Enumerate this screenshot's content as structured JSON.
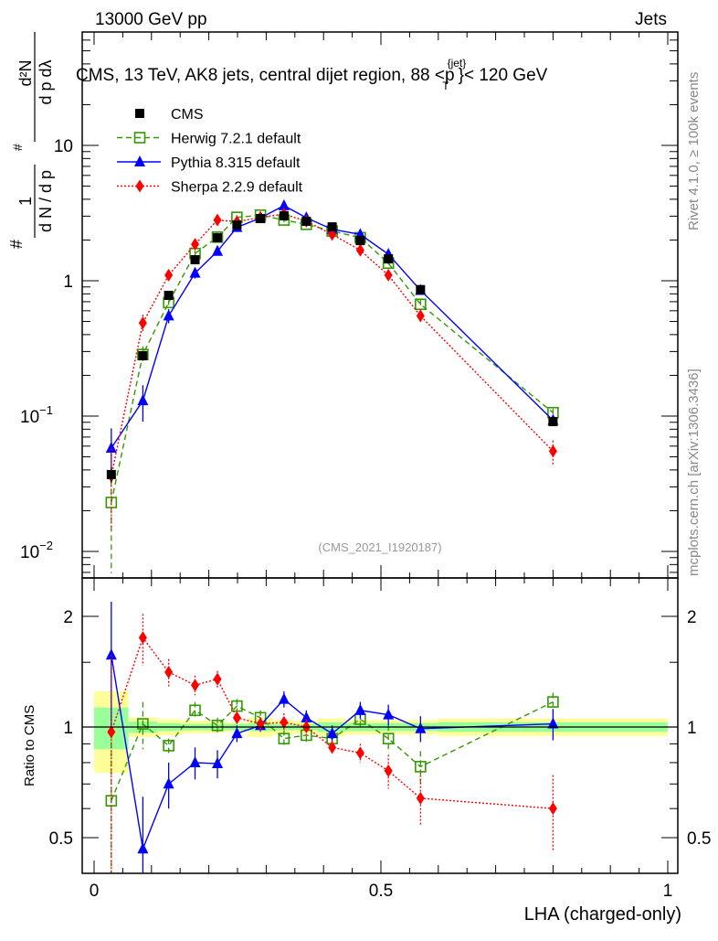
{
  "header": {
    "left": "13000 GeV pp",
    "right": "Jets"
  },
  "side": {
    "top": "Rivet 4.1.0, ≥ 100k events",
    "bottom": "mcplots.cern.ch [arXiv:1306.3436]"
  },
  "analysis_id": "(CMS_2021_I1920187)",
  "chart_data": [
    {
      "type": "line",
      "title": "CMS, 13 TeV, AK8 jets, central dijet region, 88 <p_T^{jet}< 120 GeV",
      "title_main": "CMS, 13 TeV, AK8 jets, central dijet region, 88 <p",
      "title_sup": "{jet}",
      "title_sub": "T",
      "title_end": "}< 120 GeV",
      "ylabel": "1/(dN/dp_T) d²N/(dp_T dλ)",
      "ylabel_parts": {
        "num1": "1",
        "den1": "d N / d p",
        "num2": "d²N",
        "den2": "d p  dλ",
        "hash": "#"
      },
      "xlabel": "",
      "yscale": "log",
      "xlim": [
        -0.02,
        1.02
      ],
      "ylim": [
        0.0065,
        69
      ],
      "yticks": [
        {
          "v": 0.01,
          "base": "10",
          "exp": "−2"
        },
        {
          "v": 0.1,
          "base": "10",
          "exp": "−1"
        },
        {
          "v": 1,
          "base": "1",
          "exp": ""
        },
        {
          "v": 10,
          "base": "10",
          "exp": ""
        }
      ],
      "x": [
        0.03,
        0.085,
        0.13,
        0.176,
        0.215,
        0.249,
        0.29,
        0.331,
        0.37,
        0.415,
        0.464,
        0.513,
        0.569,
        0.8
      ],
      "legend_position": "top-left",
      "series": [
        {
          "name": "CMS",
          "color": "#000000",
          "marker": "square",
          "style": "none",
          "values": [
            0.037,
            0.279,
            0.78,
            1.43,
            2.08,
            2.58,
            2.88,
            3.02,
            2.75,
            2.5,
            1.98,
            1.45,
            0.86,
            0.091
          ],
          "rel_err": [
            0.13,
            0.03,
            0.025,
            0.02,
            0.02,
            0.02,
            0.02,
            0.02,
            0.02,
            0.03,
            0.025,
            0.025,
            0.025,
            0.03
          ]
        },
        {
          "name": "Herwig 7.2.1 default",
          "color": "#339900",
          "marker": "open-square",
          "style": "dashed",
          "values": [
            0.023,
            0.285,
            0.69,
            1.59,
            2.1,
            2.94,
            3.05,
            2.81,
            2.61,
            2.33,
            2.08,
            1.35,
            0.67,
            0.106
          ],
          "rel_err": [
            0.7,
            0.15,
            0.04,
            0.05,
            0.05,
            0.04,
            0.04,
            0.04,
            0.04,
            0.03,
            0.04,
            0.07,
            0.08,
            0.07
          ]
        },
        {
          "name": "Pythia 8.315 default",
          "color": "#0000ff",
          "marker": "triangle",
          "style": "solid",
          "values": [
            0.058,
            0.13,
            0.55,
            1.14,
            1.65,
            2.48,
            2.91,
            3.59,
            2.92,
            2.4,
            2.2,
            1.57,
            0.85,
            0.093
          ],
          "rel_err": [
            0.4,
            0.3,
            0.12,
            0.09,
            0.07,
            0.05,
            0.04,
            0.05,
            0.05,
            0.05,
            0.05,
            0.06,
            0.07,
            0.09
          ]
        },
        {
          "name": "Sherpa 2.2.9 default",
          "color": "#ff0000",
          "marker": "diamond",
          "style": "dotted",
          "values": [
            0.036,
            0.488,
            1.1,
            1.86,
            2.81,
            2.73,
            2.94,
            3.11,
            2.75,
            2.2,
            1.68,
            1.1,
            0.55,
            0.055
          ],
          "rel_err": [
            0.6,
            0.15,
            0.08,
            0.06,
            0.05,
            0.04,
            0.04,
            0.06,
            0.05,
            0.04,
            0.06,
            0.09,
            0.12,
            0.2
          ]
        }
      ]
    },
    {
      "type": "line",
      "title": "",
      "ylabel": "Ratio to CMS",
      "xlabel": "LHA (charged-only)",
      "yscale": "log",
      "ylim": [
        0.4,
        2.54
      ],
      "yticks": [
        0.5,
        1,
        2
      ],
      "xticks": [
        {
          "v": 0,
          "label": "0"
        },
        {
          "v": 0.5,
          "label": "0.5"
        },
        {
          "v": 1,
          "label": "1"
        }
      ],
      "bin_edges": [
        0.0,
        0.06,
        0.11,
        0.152,
        0.2,
        0.23,
        0.268,
        0.312,
        0.35,
        0.39,
        0.44,
        0.488,
        0.538,
        0.6,
        1.0
      ],
      "band_total": [
        0.25,
        0.06,
        0.05,
        0.04,
        0.035,
        0.03,
        0.06,
        0.045,
        0.04,
        0.055,
        0.045,
        0.045,
        0.045,
        0.055
      ],
      "band_stat": [
        0.13,
        0.035,
        0.025,
        0.02,
        0.02,
        0.02,
        0.025,
        0.02,
        0.02,
        0.03,
        0.025,
        0.025,
        0.025,
        0.03
      ],
      "band_colors": {
        "total": "#ffff99",
        "stat": "#99ff99"
      },
      "series": [
        {
          "name": "Herwig 7.2.1 default",
          "values": [
            0.63,
            1.02,
            0.89,
            1.11,
            1.01,
            1.14,
            1.06,
            0.93,
            0.95,
            0.93,
            1.05,
            0.93,
            0.78,
            1.17
          ],
          "err": [
            0.45,
            0.15,
            0.04,
            0.06,
            0.05,
            0.05,
            0.05,
            0.05,
            0.05,
            0.04,
            0.05,
            0.08,
            0.08,
            0.07
          ]
        },
        {
          "name": "Pythia 8.315 default",
          "values": [
            1.57,
            0.466,
            0.7,
            0.8,
            0.795,
            0.96,
            1.01,
            1.19,
            1.06,
            0.96,
            1.11,
            1.08,
            0.99,
            1.02
          ],
          "err": [
            0.62,
            0.18,
            0.1,
            0.08,
            0.07,
            0.05,
            0.04,
            0.06,
            0.05,
            0.05,
            0.06,
            0.07,
            0.08,
            0.1
          ]
        },
        {
          "name": "Sherpa 2.2.9 default",
          "values": [
            0.97,
            1.75,
            1.41,
            1.3,
            1.35,
            1.06,
            1.02,
            1.03,
            1.0,
            0.88,
            0.85,
            0.76,
            0.64,
            0.6
          ],
          "err": [
            0.6,
            0.28,
            0.12,
            0.08,
            0.07,
            0.04,
            0.04,
            0.06,
            0.05,
            0.04,
            0.05,
            0.08,
            0.1,
            0.14
          ]
        }
      ]
    }
  ]
}
